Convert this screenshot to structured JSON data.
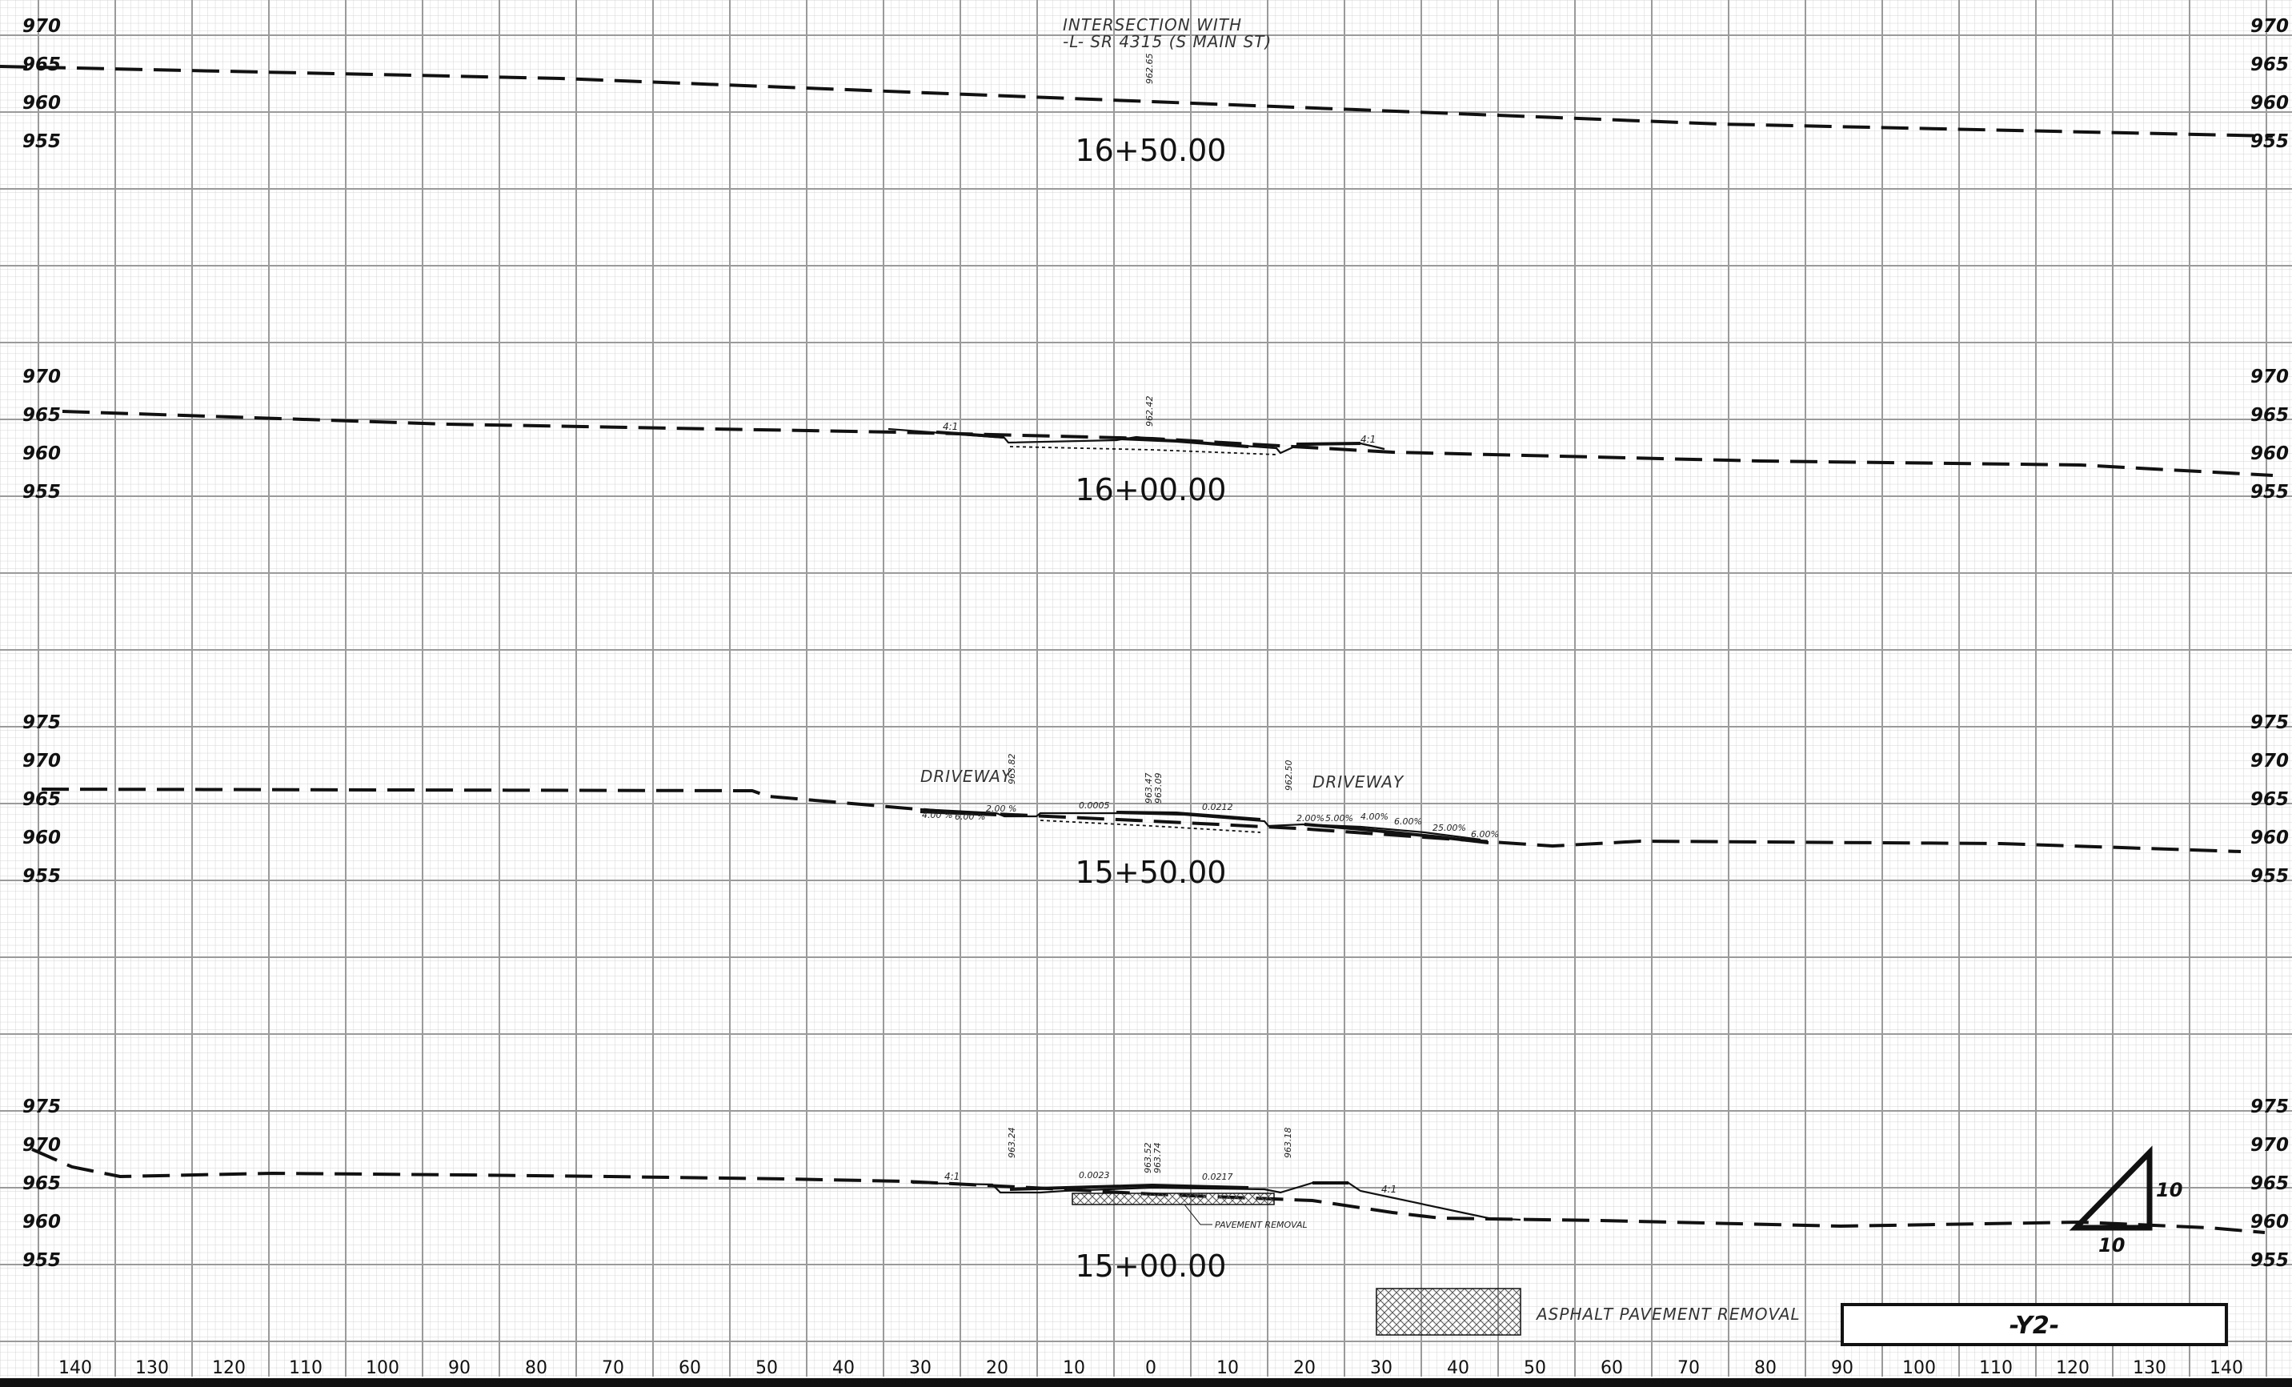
{
  "sheet": {
    "title_box": "-Y2-",
    "intersection_note_line1": "INTERSECTION WITH",
    "intersection_note_line2": "-L- SR 4315 (S MAIN ST)",
    "legend_label": "ASPHALT PAVEMENT REMOVAL",
    "scale_horizontal": "10",
    "scale_vertical": "10"
  },
  "x_axis_labels": [
    "140",
    "130",
    "120",
    "110",
    "100",
    "90",
    "80",
    "70",
    "60",
    "50",
    "40",
    "30",
    "20",
    "10",
    "0",
    "10",
    "20",
    "30",
    "40",
    "50",
    "60",
    "70",
    "80",
    "90",
    "100",
    "110",
    "120",
    "130",
    "140"
  ],
  "sections": [
    {
      "station": "16+50.00",
      "elev_labels": [
        "970",
        "965",
        "960",
        "955"
      ],
      "point_labels": [
        "962.65"
      ]
    },
    {
      "station": "16+00.00",
      "elev_labels": [
        "970",
        "965",
        "960",
        "955"
      ],
      "point_labels": [
        "962.42"
      ],
      "slope_labels": [
        "4:1",
        "4:1"
      ]
    },
    {
      "station": "15+50.00",
      "elev_labels": [
        "975",
        "970",
        "965",
        "960",
        "955"
      ],
      "point_labels": [
        "963.82",
        "963.47",
        "963.09",
        "962.50"
      ],
      "annotations": [
        "DRIVEWAY",
        "DRIVEWAY"
      ],
      "slope_labels": [
        "4.00 %",
        "6.00 %",
        "2.00 %",
        "0.0005",
        "0.0212",
        "2.00%",
        "5.00%",
        "4.00%",
        "6.00%",
        "25.00%",
        "6.00%"
      ]
    },
    {
      "station": "15+00.00",
      "elev_labels": [
        "975",
        "970",
        "965",
        "960",
        "955"
      ],
      "point_labels": [
        "963.24",
        "963.52",
        "963.74",
        "963.18"
      ],
      "slope_labels": [
        "4:1",
        "4:1",
        "0.0023",
        "0.0217"
      ],
      "annotations": [
        "PAVEMENT REMOVAL"
      ]
    }
  ]
}
